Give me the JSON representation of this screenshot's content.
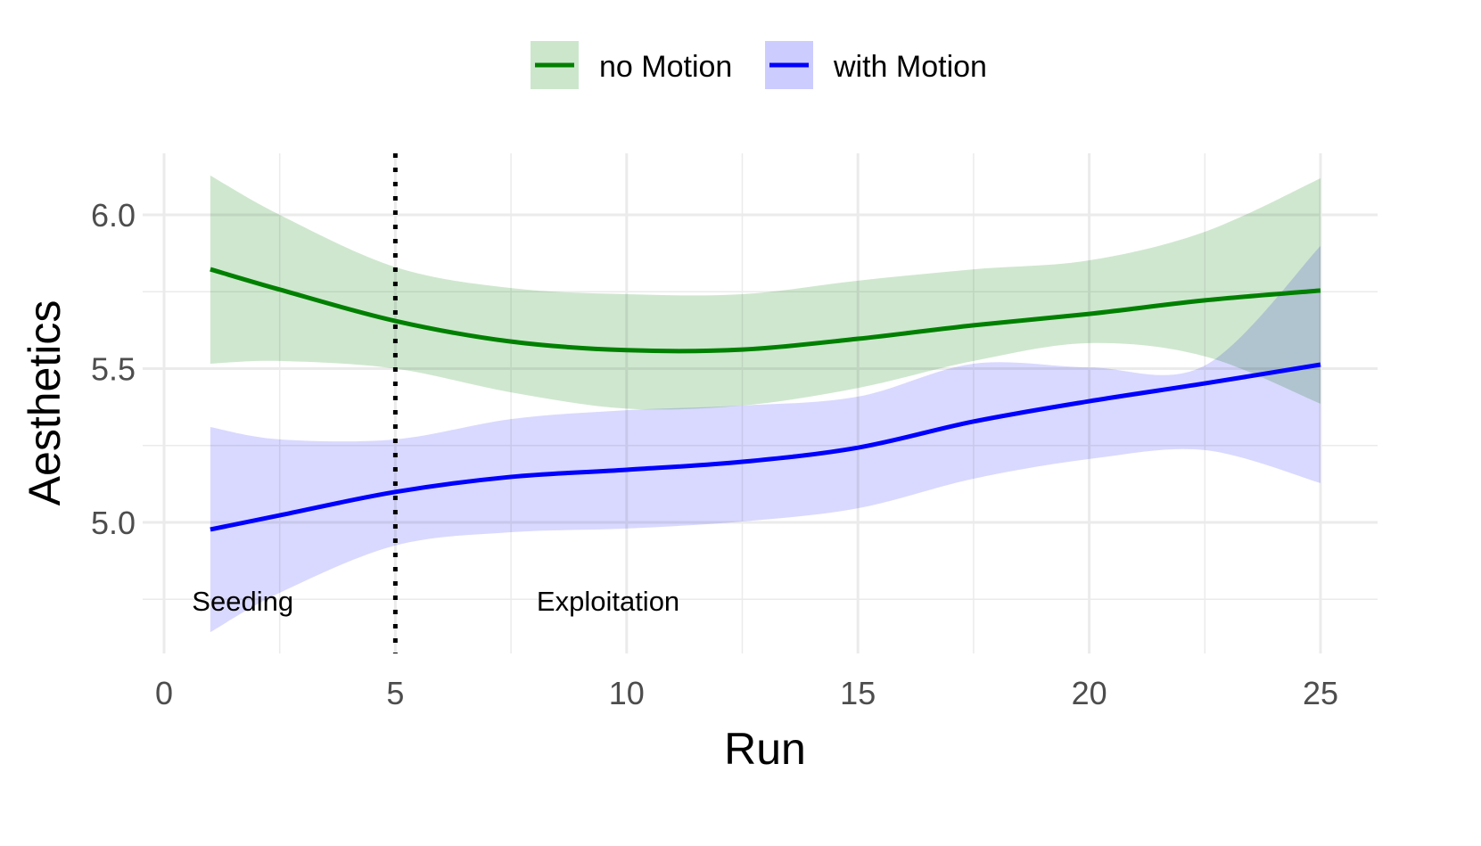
{
  "chart_data": {
    "type": "line",
    "title": "",
    "xlabel": "Run",
    "ylabel": "Aesthetics",
    "xlim": [
      0,
      26
    ],
    "ylim": [
      4.574,
      6.2
    ],
    "x_ticks": [
      0,
      5,
      10,
      15,
      20,
      25
    ],
    "x_tick_labels": [
      "0",
      "5",
      "10",
      "15",
      "20",
      "25"
    ],
    "y_ticks": [
      5.0,
      5.5,
      6.0
    ],
    "y_tick_labels": [
      "5.0",
      "5.5",
      "6.0"
    ],
    "grid": true,
    "legend_placement": "top",
    "vline": {
      "x": 5,
      "style": "dotted",
      "color": "#000000"
    },
    "annotations": [
      {
        "text": "Seeding",
        "x": 1.7,
        "y": 4.76
      },
      {
        "text": "Exploitation",
        "x": 9.6,
        "y": 4.76
      }
    ],
    "x": [
      1,
      2.5,
      5,
      7.5,
      10,
      12.5,
      15,
      17.5,
      20,
      22.5,
      25
    ],
    "series": [
      {
        "name": "no Motion",
        "color": "#008000",
        "band_color": "#cce6cc",
        "values": [
          5.823,
          5.757,
          5.655,
          5.588,
          5.56,
          5.562,
          5.597,
          5.641,
          5.678,
          5.722,
          5.754
        ],
        "upper": [
          6.128,
          6.0,
          5.83,
          5.762,
          5.742,
          5.742,
          5.786,
          5.823,
          5.852,
          5.945,
          6.119
        ],
        "lower": [
          5.516,
          5.525,
          5.5,
          5.423,
          5.37,
          5.38,
          5.437,
          5.525,
          5.583,
          5.54,
          5.386
        ]
      },
      {
        "name": "with Motion",
        "color": "#0000ff",
        "band_color": "#ccccff",
        "values": [
          4.977,
          5.023,
          5.099,
          5.148,
          5.171,
          5.197,
          5.243,
          5.328,
          5.394,
          5.452,
          5.513
        ],
        "upper": [
          5.31,
          5.27,
          5.27,
          5.336,
          5.365,
          5.38,
          5.409,
          5.516,
          5.504,
          5.51,
          5.899
        ],
        "lower": [
          4.643,
          4.771,
          4.925,
          4.968,
          4.98,
          5.003,
          5.046,
          5.142,
          5.206,
          5.235,
          5.128
        ]
      }
    ]
  }
}
